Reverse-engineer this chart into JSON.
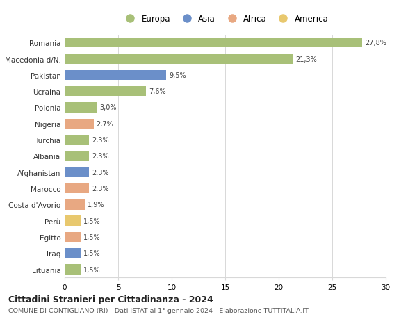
{
  "categories": [
    "Romania",
    "Macedonia d/N.",
    "Pakistan",
    "Ucraina",
    "Polonia",
    "Nigeria",
    "Turchia",
    "Albania",
    "Afghanistan",
    "Marocco",
    "Costa d'Avorio",
    "Perù",
    "Egitto",
    "Iraq",
    "Lituania"
  ],
  "values": [
    27.8,
    21.3,
    9.5,
    7.6,
    3.0,
    2.7,
    2.3,
    2.3,
    2.3,
    2.3,
    1.9,
    1.5,
    1.5,
    1.5,
    1.5
  ],
  "labels": [
    "27,8%",
    "21,3%",
    "9,5%",
    "7,6%",
    "3,0%",
    "2,7%",
    "2,3%",
    "2,3%",
    "2,3%",
    "2,3%",
    "1,9%",
    "1,5%",
    "1,5%",
    "1,5%",
    "1,5%"
  ],
  "colors": [
    "#a8c078",
    "#a8c078",
    "#6b8fc9",
    "#a8c078",
    "#a8c078",
    "#e8a882",
    "#a8c078",
    "#a8c078",
    "#6b8fc9",
    "#e8a882",
    "#e8a882",
    "#e8c86e",
    "#e8a882",
    "#6b8fc9",
    "#a8c078"
  ],
  "legend_labels": [
    "Europa",
    "Asia",
    "Africa",
    "America"
  ],
  "legend_colors": [
    "#a8c078",
    "#6b8fc9",
    "#e8a882",
    "#e8c86e"
  ],
  "title1": "Cittadini Stranieri per Cittadinanza - 2024",
  "title2": "COMUNE DI CONTIGLIANO (RI) - Dati ISTAT al 1° gennaio 2024 - Elaborazione TUTTITALIA.IT",
  "xlim": [
    0,
    30
  ],
  "xticks": [
    0,
    5,
    10,
    15,
    20,
    25,
    30
  ],
  "background_color": "#ffffff",
  "grid_color": "#d8d8d8",
  "bar_height": 0.62
}
